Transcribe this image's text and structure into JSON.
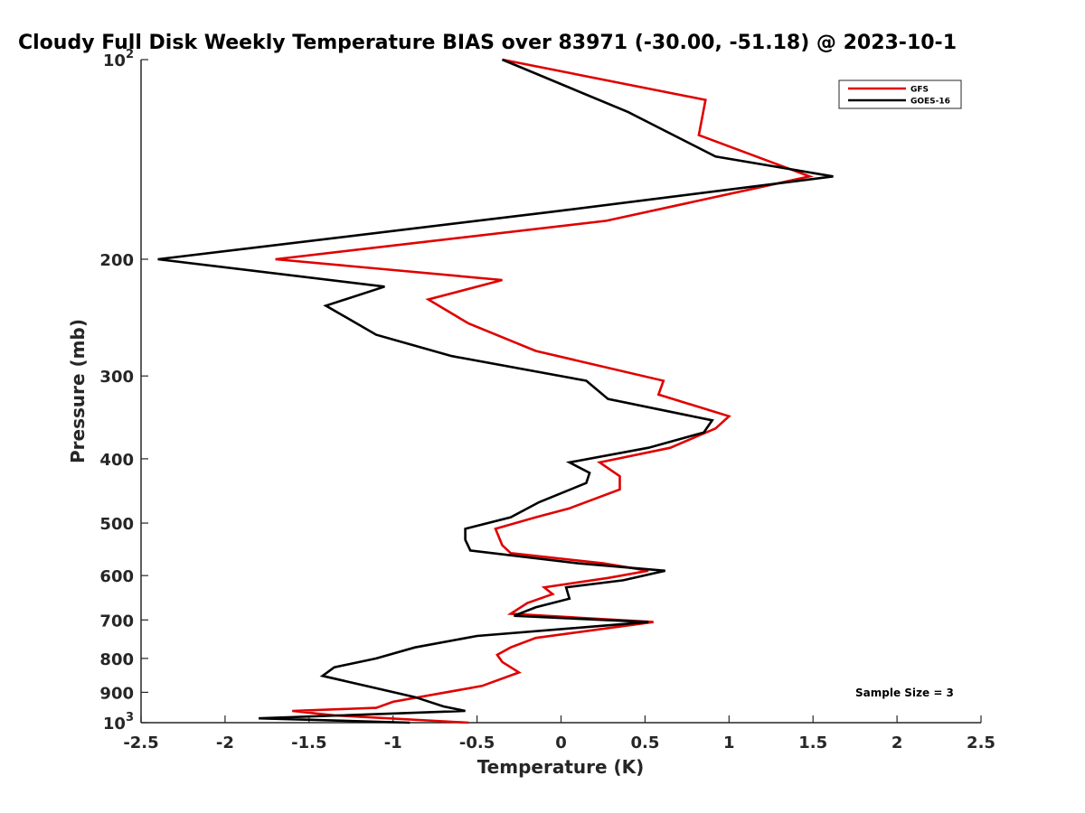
{
  "chart_data": {
    "type": "line",
    "title": "Cloudy Full Disk Weekly Temperature BIAS over 83971 (-30.00, -51.18) @ 2023-10-1",
    "xlabel": "Temperature (K)",
    "ylabel": "Pressure (mb)",
    "xlim": [
      -2.5,
      2.5
    ],
    "ylim": [
      100,
      1000
    ],
    "y_scale": "log",
    "y_reversed": true,
    "x_ticks": [
      "-2.5",
      "-2",
      "-1.5",
      "-1",
      "-0.5",
      "0",
      "0.5",
      "1",
      "1.5",
      "2",
      "2.5"
    ],
    "y_ticks": [
      {
        "value": 100,
        "base": "10",
        "exp": "2"
      },
      {
        "value": 200,
        "label": "200"
      },
      {
        "value": 300,
        "label": "300"
      },
      {
        "value": 400,
        "label": "400"
      },
      {
        "value": 500,
        "label": "500"
      },
      {
        "value": 600,
        "label": "600"
      },
      {
        "value": 700,
        "label": "700"
      },
      {
        "value": 800,
        "label": "800"
      },
      {
        "value": 900,
        "label": "900"
      },
      {
        "value": 1000,
        "base": "10",
        "exp": "3"
      }
    ],
    "legend_position": "top-right",
    "grid": false,
    "annotation": "Sample Size = 3",
    "series": [
      {
        "name": "GFS",
        "color": "#e00000",
        "points": [
          [
            -0.35,
            100
          ],
          [
            0.86,
            115
          ],
          [
            0.82,
            130
          ],
          [
            1.48,
            150
          ],
          [
            0.27,
            175
          ],
          [
            -1.7,
            200
          ],
          [
            -0.35,
            215
          ],
          [
            -0.79,
            230
          ],
          [
            -0.55,
            250
          ],
          [
            -0.15,
            275
          ],
          [
            0.61,
            305
          ],
          [
            0.58,
            320
          ],
          [
            1.0,
            345
          ],
          [
            0.92,
            360
          ],
          [
            0.65,
            385
          ],
          [
            0.23,
            405
          ],
          [
            0.35,
            425
          ],
          [
            0.35,
            445
          ],
          [
            0.05,
            475
          ],
          [
            -0.15,
            490
          ],
          [
            -0.39,
            510
          ],
          [
            -0.35,
            540
          ],
          [
            -0.3,
            555
          ],
          [
            0.25,
            575
          ],
          [
            0.52,
            590
          ],
          [
            0.28,
            605
          ],
          [
            -0.1,
            625
          ],
          [
            -0.05,
            640
          ],
          [
            -0.2,
            660
          ],
          [
            -0.3,
            685
          ],
          [
            0.55,
            705
          ],
          [
            -0.15,
            745
          ],
          [
            -0.3,
            770
          ],
          [
            -0.38,
            790
          ],
          [
            -0.35,
            810
          ],
          [
            -0.25,
            840
          ],
          [
            -0.47,
            880
          ],
          [
            -1.0,
            930
          ],
          [
            -1.1,
            950
          ],
          [
            -1.6,
            960
          ],
          [
            -1.35,
            975
          ],
          [
            -0.55,
            1000
          ]
        ]
      },
      {
        "name": "GOES-16",
        "color": "#000000",
        "points": [
          [
            -0.35,
            100
          ],
          [
            0.4,
            120
          ],
          [
            0.92,
            140
          ],
          [
            1.62,
            150
          ],
          [
            -0.08,
            170
          ],
          [
            -2.4,
            200
          ],
          [
            -1.05,
            220
          ],
          [
            -1.4,
            235
          ],
          [
            -1.1,
            260
          ],
          [
            -0.65,
            280
          ],
          [
            0.15,
            305
          ],
          [
            0.28,
            325
          ],
          [
            0.9,
            350
          ],
          [
            0.85,
            365
          ],
          [
            0.52,
            385
          ],
          [
            0.05,
            405
          ],
          [
            0.17,
            420
          ],
          [
            0.15,
            435
          ],
          [
            -0.13,
            465
          ],
          [
            -0.3,
            490
          ],
          [
            -0.57,
            510
          ],
          [
            -0.57,
            530
          ],
          [
            -0.54,
            550
          ],
          [
            0.1,
            575
          ],
          [
            0.62,
            590
          ],
          [
            0.37,
            610
          ],
          [
            0.03,
            625
          ],
          [
            0.05,
            650
          ],
          [
            -0.15,
            670
          ],
          [
            -0.28,
            690
          ],
          [
            0.52,
            705
          ],
          [
            -0.5,
            740
          ],
          [
            -0.87,
            770
          ],
          [
            -1.1,
            800
          ],
          [
            -1.35,
            825
          ],
          [
            -1.42,
            850
          ],
          [
            -0.87,
            915
          ],
          [
            -0.7,
            945
          ],
          [
            -0.57,
            960
          ],
          [
            -1.8,
            985
          ],
          [
            -0.9,
            1000
          ]
        ]
      }
    ]
  }
}
